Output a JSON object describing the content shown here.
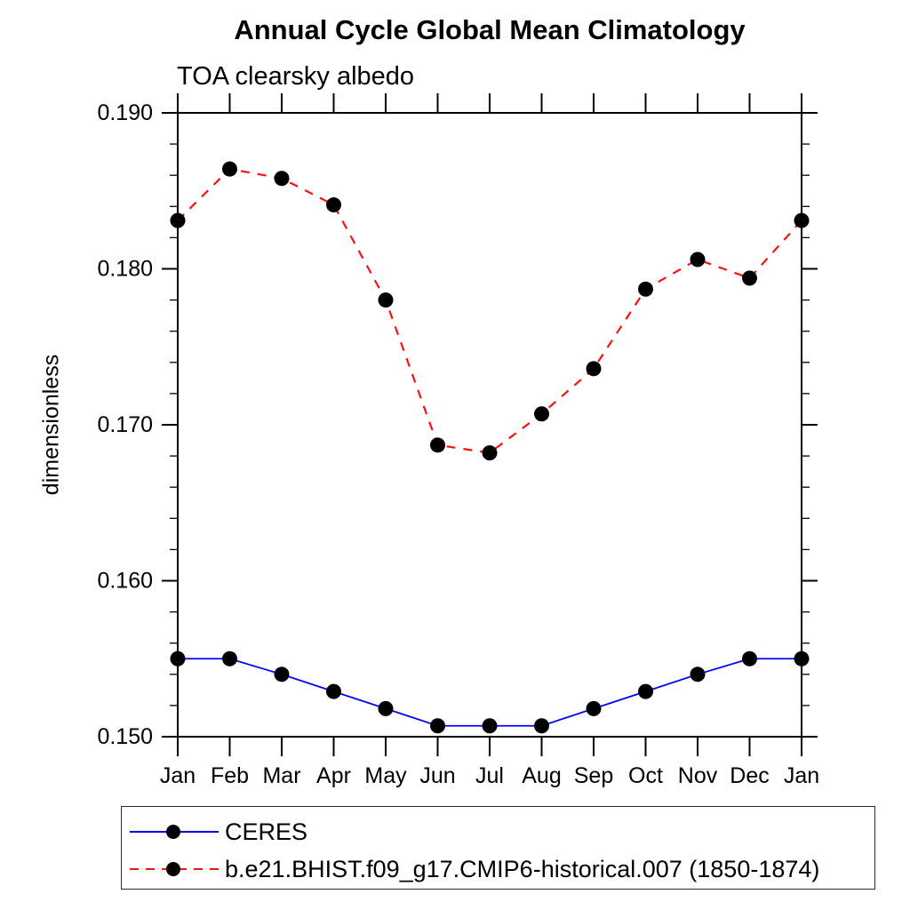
{
  "page": {
    "background": "#ffffff",
    "frame_color": "#000000"
  },
  "chart_data": {
    "type": "line",
    "title": "Annual Cycle Global Mean Climatology",
    "subtitle": "TOA clearsky albedo",
    "xlabel": "",
    "ylabel": "dimensionless",
    "categories": [
      "Jan",
      "Feb",
      "Mar",
      "Apr",
      "May",
      "Jun",
      "Jul",
      "Aug",
      "Sep",
      "Oct",
      "Nov",
      "Dec",
      "Jan"
    ],
    "ylim": [
      0.15,
      0.19
    ],
    "ytick_major_step": 0.01,
    "ytick_minor_step": 0.002,
    "ytick_labels": [
      "0.150",
      "0.160",
      "0.170",
      "0.180",
      "0.190"
    ],
    "grid": false,
    "legend_position": "bottom-left",
    "series": [
      {
        "name": "CERES",
        "color": "#0202fc",
        "line_style": "solid",
        "marker": "filled-circle",
        "marker_color": "#000000",
        "values": [
          0.155,
          0.155,
          0.154,
          0.1529,
          0.1518,
          0.1507,
          0.1507,
          0.1507,
          0.1518,
          0.1529,
          0.154,
          0.155,
          0.155
        ]
      },
      {
        "name": "b.e21.BHIST.f09_g17.CMIP6-historical.007 (1850-1874)",
        "color": "#fc0f0f",
        "line_style": "dashed",
        "marker": "filled-circle",
        "marker_color": "#000000",
        "values": [
          0.1831,
          0.1864,
          0.1858,
          0.1841,
          0.178,
          0.1687,
          0.1682,
          0.1707,
          0.1736,
          0.1787,
          0.1806,
          0.1794,
          0.1831
        ]
      }
    ]
  }
}
